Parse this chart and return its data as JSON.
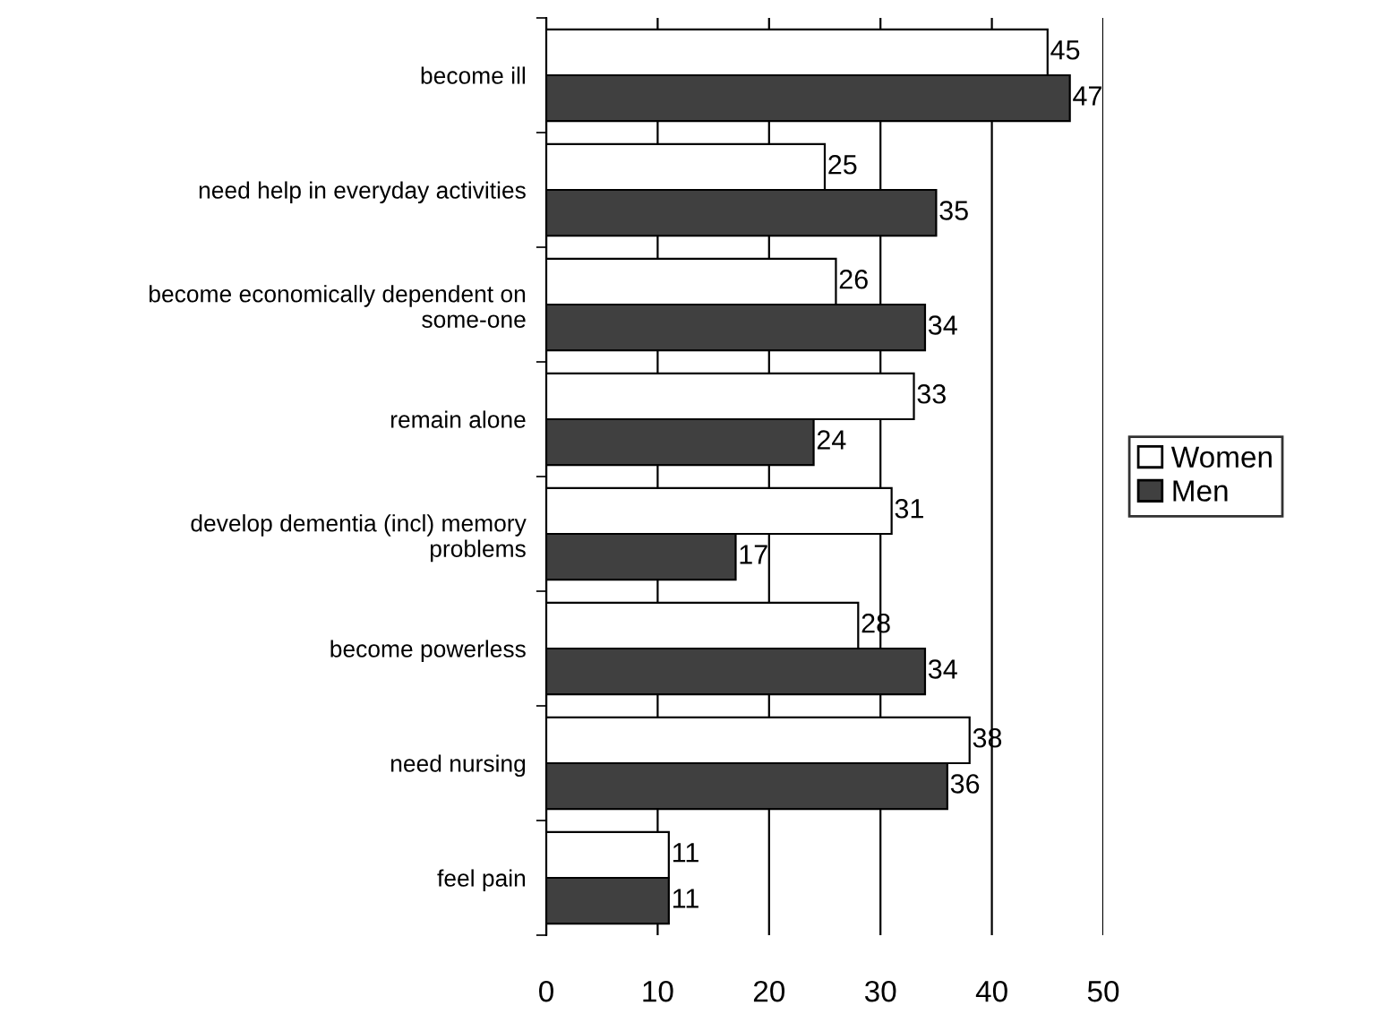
{
  "chart_data": {
    "type": "bar",
    "orientation": "horizontal",
    "categories": [
      "become ill",
      "need help in everyday activities",
      "become economically dependent on\nsome-one",
      "remain alone",
      "develop dementia (incl) memory\nproblems",
      "become powerless",
      "need nursing",
      "feel pain"
    ],
    "series": [
      {
        "name": "Women",
        "color": "#ffffff",
        "values": [
          45,
          25,
          26,
          33,
          31,
          28,
          38,
          11
        ]
      },
      {
        "name": "Men",
        "color": "#404040",
        "values": [
          47,
          35,
          34,
          24,
          17,
          34,
          36,
          11
        ]
      }
    ],
    "xlim": [
      0,
      50
    ],
    "xticks": [
      0,
      10,
      20,
      30,
      40,
      50
    ],
    "grid": "x",
    "legend": "right",
    "data_labels": true
  }
}
